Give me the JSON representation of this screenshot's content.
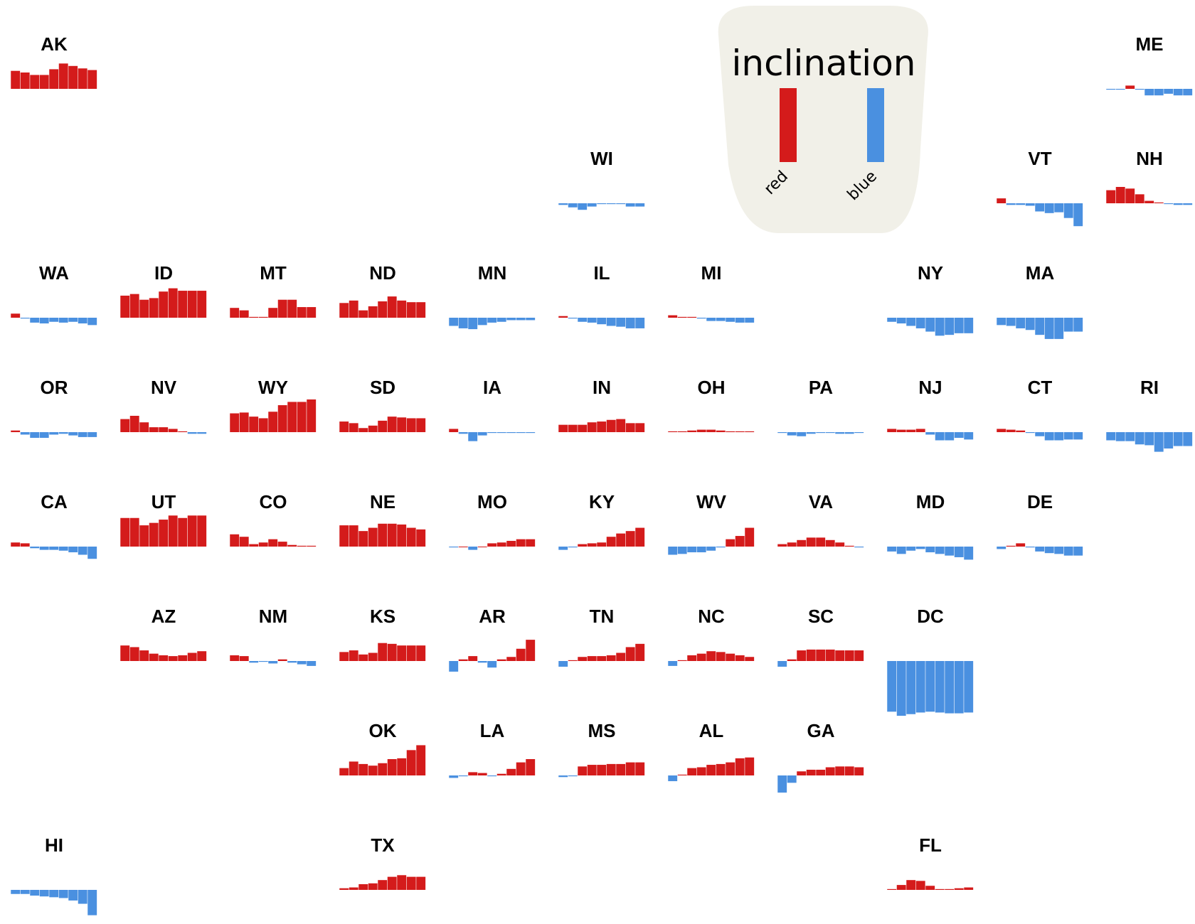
{
  "chart_data": {
    "type": "bar",
    "layout": "small-multiples tile grid map of US states",
    "value_encoding": "bars above baseline = red (positive), below baseline = blue (negative)",
    "colors": {
      "red": "#d41b1b",
      "blue": "#4a90e0",
      "legend_background": "#f1f0e8"
    },
    "legend": {
      "title": "inclination",
      "entries": [
        {
          "label": "red",
          "color": "#d41b1b"
        },
        {
          "label": "blue",
          "color": "#4a90e0"
        }
      ],
      "placement": "top-center-right"
    },
    "states": [
      {
        "abbr": "AK",
        "values": [
          22,
          20,
          17,
          17,
          24,
          31,
          28,
          25,
          23
        ]
      },
      {
        "abbr": "ME",
        "values": [
          -1,
          -1,
          4,
          -1,
          -8,
          -8,
          -6,
          -8,
          -8
        ]
      },
      {
        "abbr": "WI",
        "values": [
          -2,
          -5,
          -8,
          -4,
          -1,
          -1,
          -1,
          -4,
          -4
        ]
      },
      {
        "abbr": "VT",
        "values": [
          6,
          -2,
          -2,
          -3,
          -10,
          -12,
          -11,
          -18,
          -28
        ]
      },
      {
        "abbr": "NH",
        "values": [
          16,
          20,
          18,
          11,
          3,
          1,
          -1,
          -2,
          -2
        ]
      },
      {
        "abbr": "WA",
        "values": [
          5,
          -1,
          -6,
          -7,
          -5,
          -6,
          -5,
          -7,
          -9
        ]
      },
      {
        "abbr": "ID",
        "values": [
          27,
          29,
          22,
          24,
          32,
          36,
          33,
          33,
          33
        ]
      },
      {
        "abbr": "MT",
        "values": [
          12,
          9,
          1,
          1,
          12,
          22,
          22,
          13,
          13
        ]
      },
      {
        "abbr": "ND",
        "values": [
          18,
          21,
          9,
          14,
          20,
          26,
          21,
          19,
          19
        ]
      },
      {
        "abbr": "MN",
        "values": [
          -10,
          -13,
          -14,
          -9,
          -6,
          -5,
          -3,
          -3,
          -3
        ]
      },
      {
        "abbr": "IL",
        "values": [
          2,
          -1,
          -5,
          -6,
          -8,
          -10,
          -11,
          -13,
          -13
        ]
      },
      {
        "abbr": "MI",
        "values": [
          3,
          1,
          1,
          -1,
          -4,
          -4,
          -5,
          -6,
          -6
        ]
      },
      {
        "abbr": "NY",
        "values": [
          -5,
          -7,
          -10,
          -13,
          -17,
          -22,
          -21,
          -19,
          -19
        ]
      },
      {
        "abbr": "MA",
        "values": [
          -9,
          -10,
          -13,
          -15,
          -21,
          -26,
          -26,
          -17,
          -17
        ]
      },
      {
        "abbr": "OR",
        "values": [
          2,
          -3,
          -7,
          -7,
          -3,
          -2,
          -4,
          -6,
          -6
        ]
      },
      {
        "abbr": "NV",
        "values": [
          16,
          20,
          12,
          6,
          6,
          4,
          1,
          -2,
          -2
        ]
      },
      {
        "abbr": "WY",
        "values": [
          23,
          24,
          19,
          17,
          25,
          33,
          37,
          37,
          40
        ]
      },
      {
        "abbr": "SD",
        "values": [
          13,
          11,
          5,
          8,
          14,
          19,
          18,
          17,
          17
        ]
      },
      {
        "abbr": "IA",
        "values": [
          4,
          -2,
          -11,
          -4,
          -1,
          -1,
          -1,
          -1,
          -1
        ]
      },
      {
        "abbr": "IN",
        "values": [
          9,
          9,
          9,
          12,
          13,
          15,
          16,
          11,
          11
        ]
      },
      {
        "abbr": "OH",
        "values": [
          1,
          1,
          2,
          3,
          3,
          2,
          1,
          1,
          1
        ]
      },
      {
        "abbr": "PA",
        "values": [
          -1,
          -4,
          -5,
          -2,
          -1,
          -1,
          -2,
          -2,
          -1
        ]
      },
      {
        "abbr": "NJ",
        "values": [
          4,
          3,
          3,
          4,
          -3,
          -10,
          -10,
          -7,
          -9
        ]
      },
      {
        "abbr": "CT",
        "values": [
          4,
          3,
          2,
          -1,
          -5,
          -10,
          -10,
          -9,
          -9
        ]
      },
      {
        "abbr": "RI",
        "values": [
          -10,
          -11,
          -11,
          -15,
          -16,
          -24,
          -20,
          -17,
          -17
        ]
      },
      {
        "abbr": "CA",
        "values": [
          5,
          4,
          -2,
          -4,
          -4,
          -5,
          -7,
          -10,
          -15
        ]
      },
      {
        "abbr": "UT",
        "values": [
          35,
          35,
          26,
          29,
          33,
          38,
          35,
          38,
          38
        ]
      },
      {
        "abbr": "CO",
        "values": [
          15,
          12,
          3,
          5,
          9,
          6,
          2,
          1,
          1
        ]
      },
      {
        "abbr": "NE",
        "values": [
          26,
          26,
          19,
          23,
          28,
          28,
          27,
          23,
          21
        ]
      },
      {
        "abbr": "MO",
        "values": [
          -1,
          0,
          -4,
          0,
          4,
          5,
          7,
          9,
          9
        ]
      },
      {
        "abbr": "KY",
        "values": [
          -4,
          -1,
          3,
          4,
          5,
          12,
          16,
          19,
          23
        ]
      },
      {
        "abbr": "WV",
        "values": [
          -10,
          -9,
          -7,
          -7,
          -5,
          -1,
          9,
          13,
          23
        ]
      },
      {
        "abbr": "VA",
        "values": [
          3,
          5,
          8,
          11,
          11,
          8,
          5,
          1,
          -1
        ]
      },
      {
        "abbr": "MD",
        "values": [
          -6,
          -9,
          -5,
          -3,
          -7,
          -9,
          -11,
          -13,
          -16
        ]
      },
      {
        "abbr": "DE",
        "values": [
          -3,
          1,
          4,
          -1,
          -6,
          -8,
          -9,
          -11,
          -11
        ]
      },
      {
        "abbr": "AZ",
        "values": [
          19,
          17,
          13,
          9,
          7,
          6,
          7,
          10,
          12
        ]
      },
      {
        "abbr": "NM",
        "values": [
          7,
          6,
          -2,
          -1,
          -3,
          2,
          -2,
          -4,
          -6
        ]
      },
      {
        "abbr": "KS",
        "values": [
          11,
          13,
          8,
          10,
          22,
          21,
          19,
          19,
          19
        ]
      },
      {
        "abbr": "AR",
        "values": [
          -13,
          2,
          6,
          -2,
          -8,
          2,
          5,
          15,
          26
        ]
      },
      {
        "abbr": "TN",
        "values": [
          -7,
          1,
          5,
          6,
          6,
          7,
          10,
          17,
          21
        ]
      },
      {
        "abbr": "NC",
        "values": [
          -6,
          1,
          7,
          9,
          12,
          11,
          9,
          7,
          5
        ]
      },
      {
        "abbr": "SC",
        "values": [
          -7,
          2,
          13,
          14,
          14,
          14,
          13,
          13,
          13
        ]
      },
      {
        "abbr": "DC",
        "values": [
          -62,
          -67,
          -65,
          -63,
          -62,
          -63,
          -64,
          -64,
          -63
        ]
      },
      {
        "abbr": "OK",
        "values": [
          9,
          17,
          14,
          12,
          15,
          20,
          21,
          31,
          37
        ]
      },
      {
        "abbr": "LA",
        "values": [
          -3,
          -1,
          4,
          3,
          -1,
          2,
          8,
          16,
          20
        ]
      },
      {
        "abbr": "MS",
        "values": [
          -2,
          -1,
          11,
          13,
          13,
          14,
          14,
          16,
          16
        ]
      },
      {
        "abbr": "AL",
        "values": [
          -7,
          1,
          9,
          10,
          13,
          14,
          16,
          21,
          22
        ]
      },
      {
        "abbr": "GA",
        "values": [
          -21,
          -9,
          5,
          7,
          7,
          10,
          11,
          11,
          10
        ]
      },
      {
        "abbr": "HI",
        "values": [
          -5,
          -5,
          -7,
          -8,
          -9,
          -10,
          -13,
          -17,
          -31
        ]
      },
      {
        "abbr": "TX",
        "values": [
          2,
          3,
          7,
          8,
          12,
          16,
          18,
          16,
          16
        ]
      },
      {
        "abbr": "FL",
        "values": [
          1,
          6,
          12,
          11,
          5,
          1,
          1,
          2,
          3
        ]
      }
    ]
  }
}
